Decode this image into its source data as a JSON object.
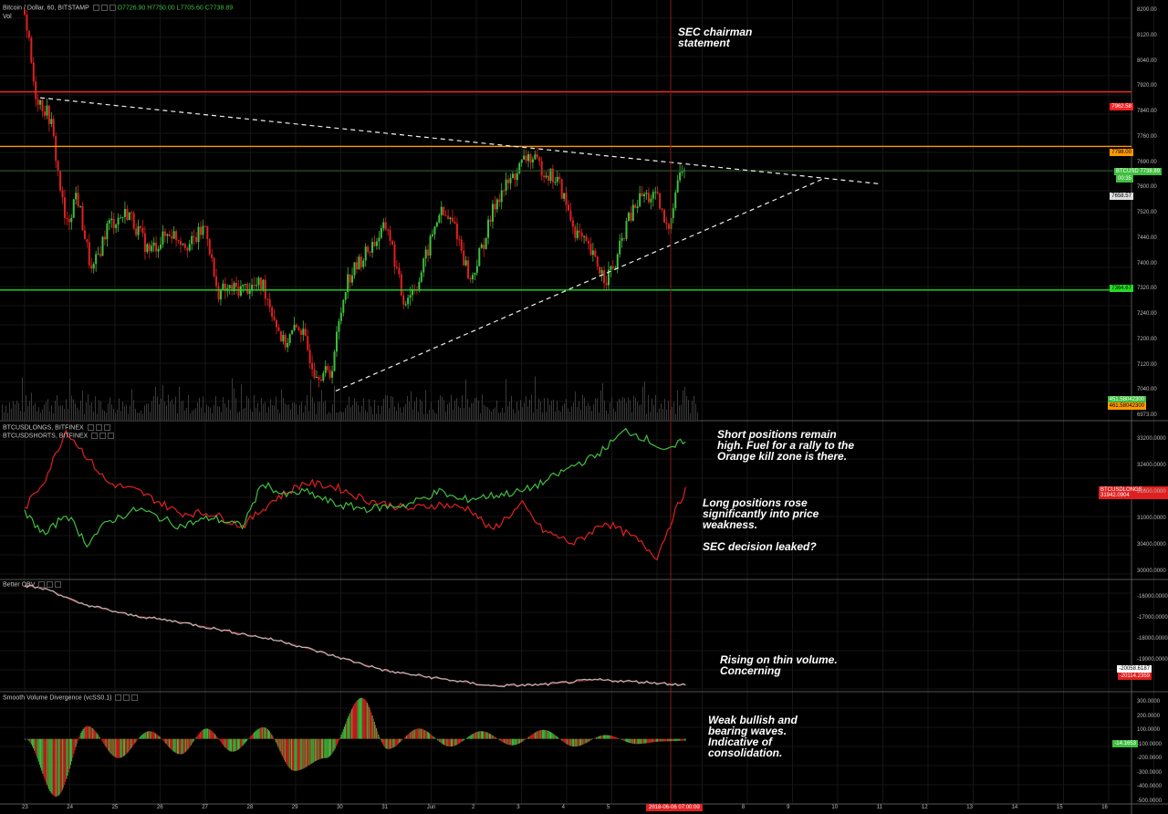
{
  "header": {
    "symbol": "Bitcoin / Dollar, 60, BITSTAMP",
    "open": "O7726.90",
    "high": "H7750.00",
    "low": "L7705.60",
    "close": "C7738.89",
    "vol_label": "Vol"
  },
  "panels": {
    "longs_label": "BTCUSDLONGS, BITFINEX",
    "shorts_label": "BTCUSDSHORTS, BITFINEX",
    "obv_label": "Better OBV",
    "svd_label": "Smooth Volume Divergence (vcSS0.1)"
  },
  "price_axis": [
    "8200.00",
    "8120.00",
    "8040.00",
    "7920.00",
    "7840.00",
    "7760.00",
    "7690.00",
    "7600.00",
    "7520.00",
    "7440.00",
    "7400.00",
    "7320.00",
    "7240.00",
    "7200.00",
    "7120.00",
    "7040.00",
    "6973.00"
  ],
  "price_tags": {
    "red_level": "7962.58",
    "orange_level": "7798.00",
    "btcusd_label": "BTCUSD",
    "btcusd_value": "7738.89",
    "current_small": "00:35",
    "other": "7658.57",
    "green_level": "7364.67",
    "vol_a": "451.58042300",
    "vol_b": "461.58042300"
  },
  "longs_axis": [
    "33200.0000",
    "32400.0000",
    "31600.0000",
    "31000.0000",
    "30400.0000",
    "30000.0000"
  ],
  "longs_tag": "BTCUSDLONGS · 31942.0904",
  "obv_axis": [
    "-16000.0000",
    "-17000.0000",
    "-18000.0000",
    "-19000.0000"
  ],
  "obv_tags": [
    "-20058.6187",
    "-20114.2359"
  ],
  "svd_axis": [
    "300.0000",
    "200.0000",
    "100.0000",
    "-100.0000",
    "-200.0000",
    "-300.0000",
    "-400.0000",
    "-500.0000"
  ],
  "svd_tag": "-14.1653",
  "date_axis": [
    "23",
    "24",
    "25",
    "26",
    "27",
    "28",
    "29",
    "30",
    "31",
    "Jun",
    "2",
    "3",
    "4",
    "5",
    "6",
    "7",
    "8",
    "9",
    "10",
    "11",
    "12",
    "13",
    "14",
    "15",
    "16"
  ],
  "crosshair_date": "2018-06-06 07:00:00",
  "annotations": {
    "sec": "SEC chairman\nstatement",
    "shorts": "Short positions remain\nhigh. Fuel for a rally to the\nOrange kill zone is there.",
    "longs": "Long positions rose\nsignificantly into price\nweakness.\n\nSEC decision leaked?",
    "obv": "Rising on thin volume.\nConcerning",
    "svd": "Weak bullish and\nbearing waves.\nIndicative of\nconsolidation."
  },
  "colors": {
    "up": "#3fbf3f",
    "down": "#e02020",
    "red_line": "#ff2020",
    "orange_line": "#ff9900",
    "green_line": "#22dd22",
    "crosshair": "#8b1a1a"
  },
  "chart_data": {
    "type": "candlestick",
    "price_ylim": [
      6973,
      8240
    ],
    "horizontal_levels": [
      {
        "color": "red",
        "value": 7962.58
      },
      {
        "color": "orange",
        "value": 7798.0
      },
      {
        "color": "green",
        "value": 7364.67
      }
    ],
    "price_path": [
      [
        23,
        8210
      ],
      [
        23.2,
        7960
      ],
      [
        23.5,
        7880
      ],
      [
        23.8,
        7550
      ],
      [
        24,
        7660
      ],
      [
        24.3,
        7410
      ],
      [
        24.6,
        7560
      ],
      [
        25,
        7600
      ],
      [
        25.4,
        7480
      ],
      [
        25.8,
        7540
      ],
      [
        26.2,
        7500
      ],
      [
        26.5,
        7560
      ],
      [
        26.7,
        7360
      ],
      [
        27.2,
        7370
      ],
      [
        27.6,
        7380
      ],
      [
        28,
        7200
      ],
      [
        28.3,
        7260
      ],
      [
        28.6,
        7120
      ],
      [
        28.9,
        7110
      ],
      [
        29.2,
        7390
      ],
      [
        29.6,
        7480
      ],
      [
        30,
        7560
      ],
      [
        30.3,
        7330
      ],
      [
        30.6,
        7390
      ],
      [
        31,
        7600
      ],
      [
        31.3,
        7560
      ],
      [
        31.6,
        7390
      ],
      [
        31.9,
        7530
      ],
      [
        32.1,
        7640
      ],
      [
        32.4,
        7700
      ],
      [
        32.7,
        7770
      ],
      [
        33,
        7730
      ],
      [
        33.3,
        7690
      ],
      [
        33.6,
        7550
      ],
      [
        33.9,
        7480
      ],
      [
        34.2,
        7400
      ],
      [
        34.4,
        7440
      ],
      [
        34.6,
        7560
      ],
      [
        34.9,
        7650
      ],
      [
        35.2,
        7640
      ],
      [
        35.4,
        7540
      ],
      [
        35.6,
        7700
      ],
      [
        35.75,
        7739
      ]
    ],
    "trendlines": [
      {
        "style": "dashed",
        "from": [
          23.3,
          7945
        ],
        "to": [
          39.5,
          7685
        ]
      },
      {
        "style": "dashed",
        "from": [
          29,
          7060
        ],
        "to": [
          38.4,
          7700
        ]
      }
    ],
    "longs": [
      [
        23,
        31500
      ],
      [
        23.4,
        32200
      ],
      [
        23.8,
        33300
      ],
      [
        24.2,
        32700
      ],
      [
        24.6,
        32100
      ],
      [
        25.2,
        31900
      ],
      [
        26,
        31400
      ],
      [
        26.6,
        31400
      ],
      [
        27.2,
        31100
      ],
      [
        27.8,
        31700
      ],
      [
        28.4,
        32100
      ],
      [
        29,
        32000
      ],
      [
        29.6,
        31700
      ],
      [
        30.4,
        31500
      ],
      [
        31,
        31600
      ],
      [
        31.6,
        31500
      ],
      [
        32,
        31000
      ],
      [
        32.6,
        31600
      ],
      [
        33,
        31000
      ],
      [
        33.6,
        30700
      ],
      [
        34.2,
        31200
      ],
      [
        34.8,
        30800
      ],
      [
        35.2,
        30400
      ],
      [
        35.5,
        31300
      ],
      [
        35.75,
        31942
      ]
    ],
    "shorts": [
      [
        23,
        31400
      ],
      [
        23.4,
        30900
      ],
      [
        23.8,
        31400
      ],
      [
        24.2,
        30700
      ],
      [
        24.6,
        31200
      ],
      [
        25.2,
        31500
      ],
      [
        26,
        31100
      ],
      [
        26.6,
        31300
      ],
      [
        27.2,
        31100
      ],
      [
        27.6,
        32100
      ],
      [
        28,
        31800
      ],
      [
        28.4,
        31900
      ],
      [
        29,
        31600
      ],
      [
        29.6,
        31500
      ],
      [
        30.4,
        31600
      ],
      [
        31,
        31900
      ],
      [
        31.4,
        31700
      ],
      [
        32,
        31800
      ],
      [
        32.6,
        31900
      ],
      [
        33,
        32100
      ],
      [
        33.6,
        32500
      ],
      [
        34,
        32700
      ],
      [
        34.6,
        33300
      ],
      [
        35,
        33100
      ],
      [
        35.4,
        32800
      ],
      [
        35.75,
        33100
      ]
    ],
    "obv": [
      [
        23,
        -16000
      ],
      [
        23.5,
        -16200
      ],
      [
        24,
        -16700
      ],
      [
        25,
        -17200
      ],
      [
        26,
        -17500
      ],
      [
        27,
        -17900
      ],
      [
        28,
        -18300
      ],
      [
        29,
        -18900
      ],
      [
        30,
        -19500
      ],
      [
        31,
        -19800
      ],
      [
        32,
        -20100
      ],
      [
        33,
        -20050
      ],
      [
        34,
        -19850
      ],
      [
        35,
        -19950
      ],
      [
        35.75,
        -20058
      ]
    ],
    "svd": [
      [
        23,
        0
      ],
      [
        23.6,
        -450
      ],
      [
        24.2,
        100
      ],
      [
        24.8,
        -150
      ],
      [
        25.4,
        60
      ],
      [
        26,
        -120
      ],
      [
        26.5,
        80
      ],
      [
        27,
        -100
      ],
      [
        27.6,
        90
      ],
      [
        28.2,
        -250
      ],
      [
        28.8,
        -150
      ],
      [
        29.5,
        320
      ],
      [
        30,
        -80
      ],
      [
        30.6,
        80
      ],
      [
        31.2,
        -60
      ],
      [
        31.8,
        60
      ],
      [
        32.4,
        -50
      ],
      [
        33,
        70
      ],
      [
        33.6,
        -60
      ],
      [
        34.2,
        30
      ],
      [
        34.8,
        -40
      ],
      [
        35.3,
        -20
      ],
      [
        35.75,
        -14
      ]
    ]
  }
}
